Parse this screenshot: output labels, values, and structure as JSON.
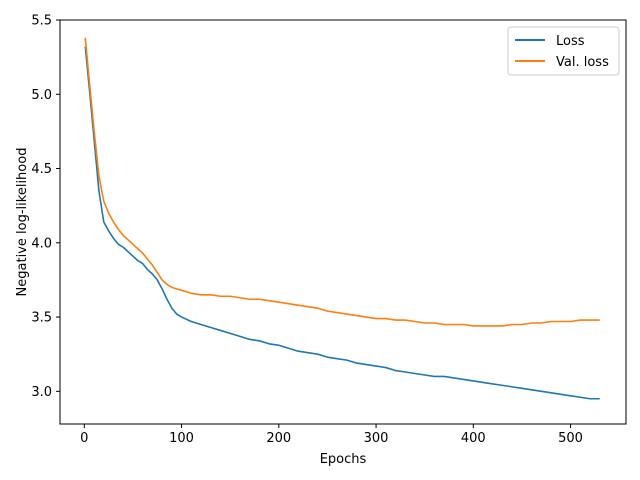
{
  "chart_data": {
    "type": "line",
    "title": "",
    "xlabel": "Epochs",
    "ylabel": "Negative log-likelihood",
    "xlim": [
      -25,
      557
    ],
    "ylim": [
      2.78,
      5.5
    ],
    "xticks": [
      0,
      100,
      200,
      300,
      400,
      500
    ],
    "xtick_labels": [
      "0",
      "100",
      "200",
      "300",
      "400",
      "500"
    ],
    "yticks": [
      3.0,
      3.5,
      4.0,
      4.5,
      5.0,
      5.5
    ],
    "ytick_labels": [
      "3.0",
      "3.5",
      "4.0",
      "4.5",
      "5.0",
      "5.5"
    ],
    "grid": false,
    "legend_position": "top-right",
    "series": [
      {
        "name": "Loss",
        "color": "#1f77b4",
        "x": [
          1,
          5,
          10,
          15,
          20,
          25,
          30,
          35,
          40,
          45,
          50,
          55,
          60,
          65,
          70,
          75,
          80,
          85,
          90,
          95,
          100,
          110,
          120,
          130,
          140,
          150,
          160,
          170,
          180,
          190,
          200,
          210,
          220,
          230,
          240,
          250,
          260,
          270,
          280,
          290,
          300,
          310,
          320,
          330,
          340,
          350,
          360,
          370,
          380,
          390,
          400,
          410,
          420,
          430,
          440,
          450,
          460,
          470,
          480,
          490,
          500,
          510,
          520,
          530
        ],
        "y": [
          5.32,
          5.05,
          4.7,
          4.35,
          4.14,
          4.08,
          4.03,
          3.99,
          3.97,
          3.94,
          3.91,
          3.88,
          3.86,
          3.82,
          3.79,
          3.75,
          3.69,
          3.62,
          3.56,
          3.52,
          3.5,
          3.47,
          3.45,
          3.43,
          3.41,
          3.39,
          3.37,
          3.35,
          3.34,
          3.32,
          3.31,
          3.29,
          3.27,
          3.26,
          3.25,
          3.23,
          3.22,
          3.21,
          3.19,
          3.18,
          3.17,
          3.16,
          3.14,
          3.13,
          3.12,
          3.11,
          3.1,
          3.1,
          3.09,
          3.08,
          3.07,
          3.06,
          3.05,
          3.04,
          3.03,
          3.02,
          3.01,
          3.0,
          2.99,
          2.98,
          2.97,
          2.96,
          2.95,
          2.95
        ]
      },
      {
        "name": "Val. loss",
        "color": "#ff7f0e",
        "x": [
          1,
          5,
          10,
          15,
          20,
          25,
          30,
          35,
          40,
          45,
          50,
          55,
          60,
          65,
          70,
          75,
          80,
          85,
          90,
          95,
          100,
          110,
          120,
          130,
          140,
          150,
          160,
          170,
          180,
          190,
          200,
          210,
          220,
          230,
          240,
          250,
          260,
          270,
          280,
          290,
          300,
          310,
          320,
          330,
          340,
          350,
          360,
          370,
          380,
          390,
          400,
          410,
          420,
          430,
          440,
          450,
          460,
          470,
          480,
          490,
          500,
          510,
          520,
          530
        ],
        "y": [
          5.38,
          5.1,
          4.76,
          4.45,
          4.28,
          4.2,
          4.14,
          4.09,
          4.05,
          4.02,
          3.99,
          3.96,
          3.93,
          3.89,
          3.85,
          3.8,
          3.75,
          3.72,
          3.7,
          3.69,
          3.68,
          3.66,
          3.65,
          3.65,
          3.64,
          3.64,
          3.63,
          3.62,
          3.62,
          3.61,
          3.6,
          3.59,
          3.58,
          3.57,
          3.56,
          3.54,
          3.53,
          3.52,
          3.51,
          3.5,
          3.49,
          3.49,
          3.48,
          3.48,
          3.47,
          3.46,
          3.46,
          3.45,
          3.45,
          3.45,
          3.44,
          3.44,
          3.44,
          3.44,
          3.45,
          3.45,
          3.46,
          3.46,
          3.47,
          3.47,
          3.47,
          3.48,
          3.48,
          3.48
        ]
      }
    ]
  }
}
